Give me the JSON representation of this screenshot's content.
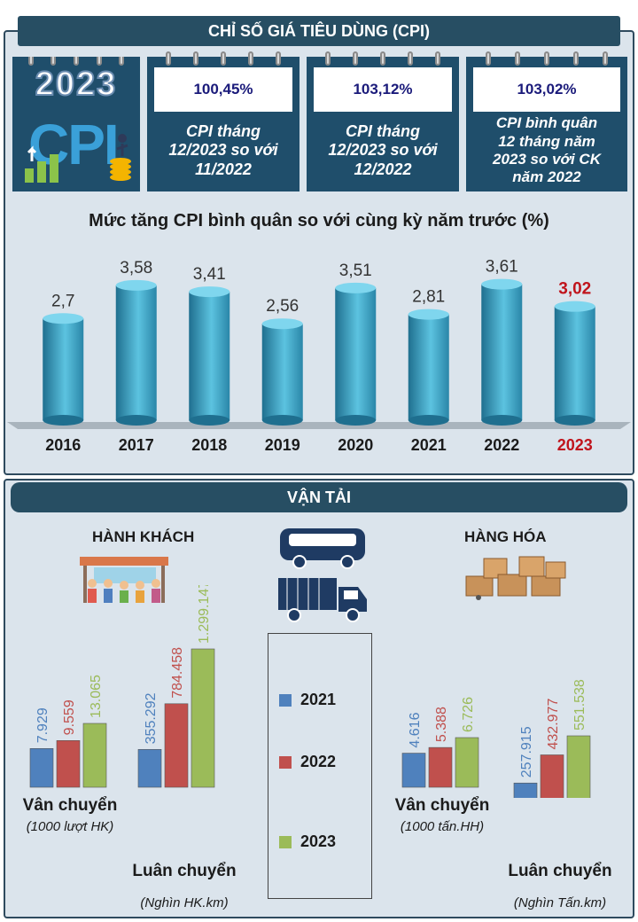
{
  "cpi_banner": "CHỈ SỐ GIÁ TIÊU DÙNG (CPI)",
  "logo": {
    "year": "2023",
    "text": "CPI"
  },
  "cards": [
    {
      "pct": "100,45%",
      "desc": "CPI tháng\n12/2023 so với\n11/2022"
    },
    {
      "pct": "103,12%",
      "desc": "CPI tháng\n12/2023 so với\n12/2022"
    },
    {
      "pct": "103,02%",
      "desc": "CPI bình quân\n12 tháng năm\n2023 so với CK\nnăm 2022"
    }
  ],
  "transport_banner": "VẬN TẢI",
  "passenger_title": "HÀNH KHÁCH",
  "freight_title": "HÀNG HÓA",
  "colors": {
    "navy": "#274e63",
    "bar_teal": "#3aa6c8",
    "highlight": "#c0141c",
    "s2021": "#4f81bd",
    "s2022": "#c0504d",
    "s2023": "#9bbb59"
  },
  "chart_data": [
    {
      "type": "bar",
      "title": "Mức tăng CPI bình quân so với cùng kỳ năm trước (%)",
      "categories": [
        "2016",
        "2017",
        "2018",
        "2019",
        "2020",
        "2021",
        "2022",
        "2023"
      ],
      "labels": [
        "2,7",
        "3,58",
        "3,41",
        "2,56",
        "3,51",
        "2,81",
        "3,61",
        "3,02"
      ],
      "values": [
        2.7,
        3.58,
        3.41,
        2.56,
        3.51,
        2.81,
        3.61,
        3.02
      ],
      "highlight": "2023",
      "ylim": [
        0,
        4
      ]
    },
    {
      "type": "bar",
      "group": "HÀNH KHÁCH",
      "series_names": [
        "2021",
        "2022",
        "2023"
      ],
      "groups": [
        {
          "label": "Vân chuyển",
          "unit": "(1000 lượt HK)",
          "values": [
            7929,
            9559,
            13065
          ],
          "labels": [
            "7.929",
            "9.559",
            "13.065"
          ]
        },
        {
          "label": "Luân chuyển",
          "unit": "(Nghìn HK.km)",
          "values": [
            355292,
            784458,
            1299147
          ],
          "labels": [
            "355.292",
            "784.458",
            "1.299.147"
          ]
        }
      ]
    },
    {
      "type": "bar",
      "group": "HÀNG HÓA",
      "series_names": [
        "2021",
        "2022",
        "2023"
      ],
      "groups": [
        {
          "label": "Vân chuyển",
          "unit": "(1000 tấn.HH)",
          "values": [
            4616,
            5388,
            6726
          ],
          "labels": [
            "4.616",
            "5.388",
            "6.726"
          ]
        },
        {
          "label": "Luân chuyển",
          "unit": "(Nghìn Tấn.km)",
          "values": [
            257915,
            432977,
            551538
          ],
          "labels": [
            "257.915",
            "432.977",
            "551.538"
          ]
        }
      ]
    }
  ]
}
